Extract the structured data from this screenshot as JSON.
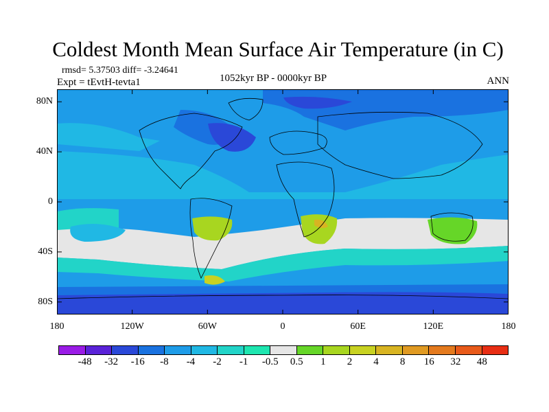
{
  "title": "Coldest Month Mean Surface Air Temperature (in C)",
  "stats_text": "rmsd= 5.37503  diff= -3.24641",
  "experiment_text": "Expt = tEvtH-tevta1",
  "period_text": "1052kyr BP - 0000kyr BP",
  "season_text": "ANN",
  "map": {
    "projection": "cylindrical-equidistant",
    "lon_range": [
      -180,
      180
    ],
    "lat_range": [
      -90,
      90
    ],
    "background_color": "#1e9ce8",
    "lat_ticks": [
      {
        "value": 80,
        "label": "80N"
      },
      {
        "value": 40,
        "label": "40N"
      },
      {
        "value": 0,
        "label": "0"
      },
      {
        "value": -40,
        "label": "40S"
      },
      {
        "value": -80,
        "label": "80S"
      }
    ],
    "lon_ticks": [
      {
        "value": -180,
        "label": "180"
      },
      {
        "value": -120,
        "label": "120W"
      },
      {
        "value": -60,
        "label": "60W"
      },
      {
        "value": 0,
        "label": "0"
      },
      {
        "value": 60,
        "label": "60E"
      },
      {
        "value": 120,
        "label": "120E"
      },
      {
        "value": 180,
        "label": "180"
      }
    ]
  },
  "colorbar": {
    "colors": [
      "#9a1ce6",
      "#5a22d8",
      "#2a48d8",
      "#1a72e0",
      "#1e9ce8",
      "#20b8e4",
      "#22d4c8",
      "#1ee6b0",
      "#e6e6e6",
      "#66d628",
      "#a8d620",
      "#c8d222",
      "#d8b422",
      "#e09a22",
      "#e47a1e",
      "#e85a1a",
      "#e82e14"
    ],
    "labels": [
      "-48",
      "-32",
      "-16",
      "-8",
      "-4",
      "-2",
      "-1",
      "-0.5",
      "0.5",
      "1",
      "2",
      "4",
      "8",
      "16",
      "32",
      "48"
    ]
  }
}
